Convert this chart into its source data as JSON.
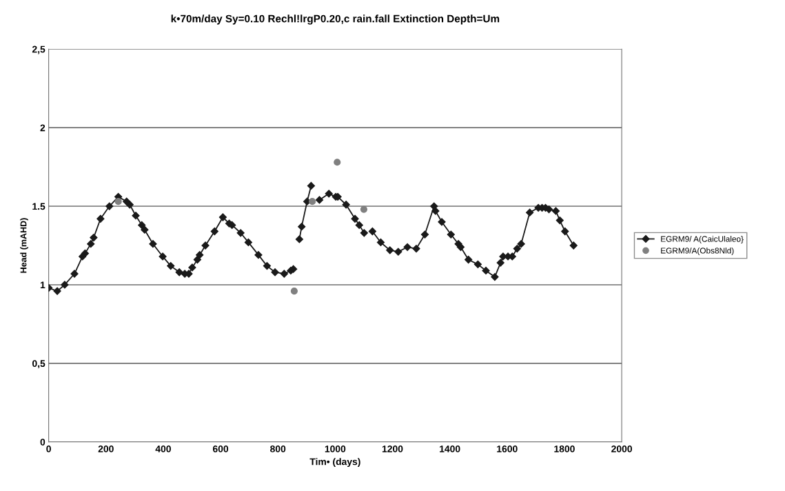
{
  "chart_data": {
    "type": "line",
    "title": "k•70m/day Sy=0.10 Rechl!lrgP0.20,c rain.fall Extinction Depth=Um",
    "xlabel": "Tim• (days)",
    "ylabel": "Head (mAHD)",
    "xlim": [
      0,
      2000
    ],
    "xticks": [
      0,
      200,
      400,
      600,
      800,
      1000,
      1200,
      1400,
      1600,
      1800,
      2000
    ],
    "ylim": [
      0,
      2.5
    ],
    "yticks": [
      0,
      {
        "value": 0.5,
        "label": "0,5"
      },
      1,
      1.5,
      2,
      {
        "value": 2.5,
        "label": "2,5"
      }
    ],
    "grid": "y",
    "legend": "right",
    "series": [
      {
        "name": "EGRM9/ A(CaicUlaleo}",
        "marker": "diamond",
        "color": "#1a1a1a",
        "x": [
          0,
          30,
          56,
          90,
          118,
          127,
          147,
          157,
          181,
          212,
          243,
          272,
          283,
          304,
          325,
          335,
          364,
          398,
          426,
          456,
          475,
          489,
          501,
          519,
          527,
          547,
          579,
          608,
          630,
          640,
          670,
          697,
          732,
          762,
          790,
          822,
          845,
          854,
          860,
          875,
          883,
          902,
          916,
          930,
          945,
          978,
          1002,
          1009,
          1038,
          1069,
          1084,
          1101,
          1115,
          1130,
          1159,
          1191,
          1220,
          1252,
          1283,
          1313,
          1345,
          1350,
          1372,
          1404,
          1430,
          1438,
          1465,
          1498,
          1526,
          1557,
          1577,
          1586,
          1603,
          1618,
          1635,
          1649,
          1679,
          1709,
          1722,
          1734,
          1746,
          1770,
          1784,
          1802,
          1832
        ],
        "values": [
          0.98,
          0.96,
          1.0,
          1.07,
          1.18,
          1.2,
          1.26,
          1.3,
          1.42,
          1.5,
          1.56,
          1.53,
          1.51,
          1.44,
          1.38,
          1.35,
          1.26,
          1.18,
          1.12,
          1.08,
          1.07,
          1.07,
          1.11,
          1.16,
          1.19,
          1.25,
          1.34,
          1.43,
          1.39,
          1.38,
          1.33,
          1.27,
          1.19,
          1.12,
          1.08,
          1.07,
          1.09,
          1.1,
          null,
          1.29,
          1.37,
          1.53,
          1.63,
          null,
          1.54,
          1.58,
          1.56,
          1.56,
          1.51,
          1.42,
          1.38,
          1.33,
          null,
          1.34,
          1.27,
          1.22,
          1.21,
          1.24,
          1.23,
          1.32,
          1.5,
          1.47,
          1.4,
          1.32,
          1.26,
          1.24,
          1.16,
          1.13,
          1.09,
          1.05,
          1.14,
          1.18,
          1.18,
          1.18,
          1.23,
          1.26,
          1.46,
          1.49,
          1.49,
          1.49,
          1.48,
          1.47,
          1.41,
          1.34,
          1.25
        ]
      },
      {
        "name": "EGRM9/A(Obs8Nld)",
        "type": "scatter",
        "marker": "circle",
        "color": "#808080",
        "x": [
          243,
          857,
          920,
          1007,
          1100
        ],
        "values": [
          1.53,
          0.96,
          1.53,
          1.78,
          1.48
        ]
      }
    ]
  }
}
